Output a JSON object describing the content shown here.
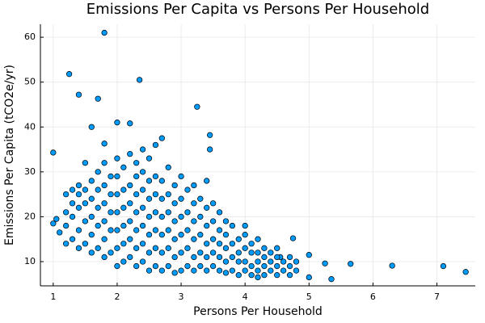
{
  "chart_data": {
    "type": "scatter",
    "title": "Emissions Per Capita vs Persons Per Household",
    "x_label": "Persons Per Household",
    "y_label": "Emissions Per Capita (tCO2e/yr)",
    "color": "#009af9",
    "grid": true,
    "xlim": [
      0.8,
      7.6
    ],
    "ylim": [
      4.6,
      62.9
    ],
    "xticks": [
      1,
      2,
      3,
      4,
      5,
      6,
      7
    ],
    "yticks": [
      10,
      20,
      30,
      40,
      50,
      60
    ],
    "x": [
      1.8,
      1.25,
      2.35,
      1.4,
      1.7,
      3.25,
      2.0,
      2.2,
      1.6,
      1.0,
      3.45,
      3.45,
      1.8,
      7.45,
      7.1,
      6.3,
      5.65,
      5.35,
      5.0,
      5.0,
      5.25,
      4.75,
      4.55,
      4.2,
      1.0,
      1.05,
      1.1,
      1.2,
      1.2,
      1.2,
      1.2,
      1.3,
      1.3,
      1.3,
      1.3,
      1.4,
      1.4,
      1.4,
      1.4,
      1.4,
      1.5,
      1.5,
      1.5,
      1.5,
      1.5,
      1.6,
      1.6,
      1.6,
      1.6,
      1.6,
      1.7,
      1.7,
      1.7,
      1.7,
      1.7,
      1.8,
      1.8,
      1.8,
      1.8,
      1.8,
      1.8,
      1.9,
      1.9,
      1.9,
      1.9,
      1.9,
      2.0,
      2.0,
      2.0,
      2.0,
      2.0,
      2.0,
      2.0,
      2.1,
      2.1,
      2.1,
      2.1,
      2.1,
      2.1,
      2.2,
      2.2,
      2.2,
      2.2,
      2.2,
      2.2,
      2.3,
      2.3,
      2.3,
      2.3,
      2.3,
      2.3,
      2.3,
      2.4,
      2.4,
      2.4,
      2.4,
      2.4,
      2.4,
      2.4,
      2.5,
      2.5,
      2.5,
      2.5,
      2.5,
      2.5,
      2.5,
      2.6,
      2.6,
      2.6,
      2.6,
      2.6,
      2.6,
      2.6,
      2.7,
      2.7,
      2.7,
      2.7,
      2.7,
      2.7,
      2.7,
      2.8,
      2.8,
      2.8,
      2.8,
      2.8,
      2.8,
      2.9,
      2.9,
      2.9,
      2.9,
      2.9,
      2.9,
      3.0,
      3.0,
      3.0,
      3.0,
      3.0,
      3.0,
      3.1,
      3.1,
      3.1,
      3.1,
      3.1,
      3.2,
      3.2,
      3.2,
      3.2,
      3.2,
      3.2,
      3.3,
      3.3,
      3.3,
      3.3,
      3.3,
      3.4,
      3.4,
      3.4,
      3.4,
      3.4,
      3.4,
      3.5,
      3.5,
      3.5,
      3.5,
      3.5,
      3.6,
      3.6,
      3.6,
      3.6,
      3.6,
      3.7,
      3.7,
      3.7,
      3.7,
      3.7,
      3.8,
      3.8,
      3.8,
      3.8,
      3.9,
      3.9,
      3.9,
      3.9,
      4.0,
      4.0,
      4.0,
      4.0,
      4.0,
      4.1,
      4.1,
      4.1,
      4.1,
      4.2,
      4.2,
      4.2,
      4.2,
      4.3,
      4.3,
      4.3,
      4.3,
      4.4,
      4.4,
      4.4,
      4.5,
      4.5,
      4.5,
      4.5,
      4.6,
      4.6,
      4.7,
      4.7,
      4.7,
      4.8,
      4.8
    ],
    "values": [
      61,
      51.8,
      50.5,
      47.2,
      46.3,
      44.5,
      41,
      40.8,
      40,
      34.3,
      38.2,
      35,
      36.3,
      7.7,
      9,
      9.1,
      9.5,
      6.1,
      6.5,
      11.5,
      9.6,
      15.2,
      11,
      6.5,
      18.5,
      19.5,
      16.5,
      14,
      18,
      21,
      25,
      15,
      20,
      23,
      26,
      13,
      17,
      22,
      25,
      27,
      14,
      19,
      23,
      26,
      32,
      12,
      16,
      20,
      24,
      28,
      13,
      18,
      22,
      26,
      30,
      11,
      15,
      19,
      23,
      27,
      32,
      12,
      17,
      21,
      25,
      29,
      9,
      13,
      17,
      21,
      25,
      29,
      33,
      10,
      14,
      18,
      22,
      26,
      31,
      11,
      15,
      19,
      23,
      27,
      34,
      9,
      13,
      17,
      21,
      25,
      29,
      32,
      10,
      14,
      18,
      22,
      26,
      30,
      35,
      8,
      12,
      16,
      20,
      24,
      28,
      33,
      9,
      13,
      17,
      21,
      25,
      29,
      36,
      8,
      12,
      16,
      20,
      24,
      28,
      37.5,
      9,
      13,
      17,
      21,
      25,
      31,
      7.5,
      11,
      15,
      19,
      23,
      27,
      8,
      12,
      16,
      20,
      24,
      29,
      9,
      13,
      17,
      21,
      26,
      8,
      11,
      15,
      19,
      23,
      27,
      9,
      12,
      16,
      20,
      24,
      8,
      11,
      14,
      18,
      22,
      28,
      9,
      12,
      15,
      19,
      23,
      8,
      11,
      14,
      17,
      21,
      7.5,
      10,
      13,
      16,
      19,
      8,
      11,
      14,
      18,
      7,
      10,
      12,
      15,
      8,
      10,
      13,
      16,
      18,
      7,
      9,
      12,
      14,
      8,
      10,
      12,
      15,
      7,
      9,
      11,
      13,
      8,
      10,
      12,
      7,
      9,
      11,
      13,
      8,
      10,
      7,
      9,
      11,
      8,
      10
    ]
  }
}
